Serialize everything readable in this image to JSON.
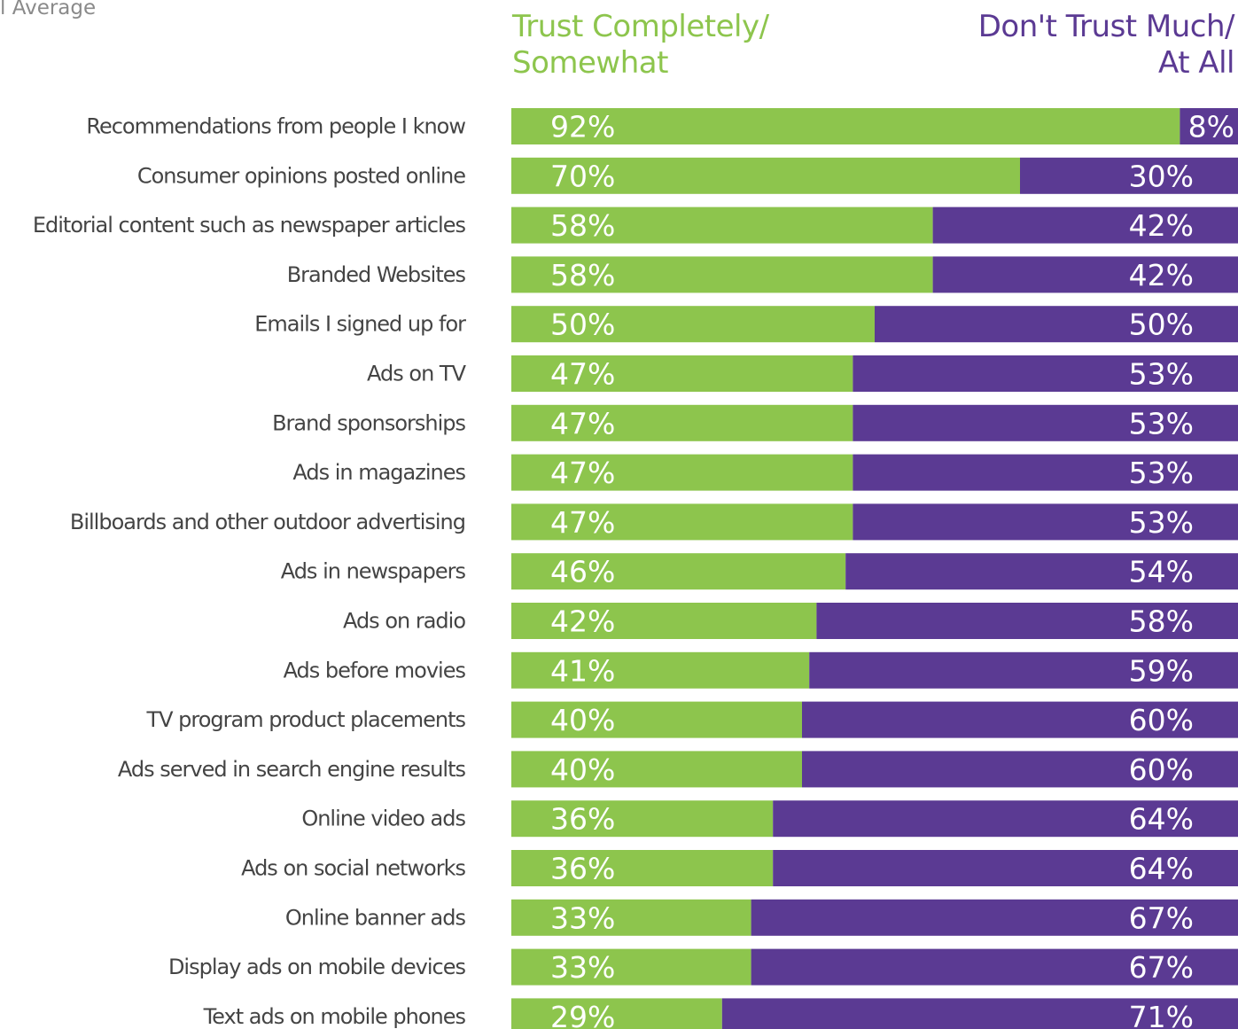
{
  "header": {
    "corner_label": "l Average"
  },
  "legend": {
    "trust_line1": "Trust Completely/",
    "trust_line2": "Somewhat",
    "distrust_line1": "Don't Trust Much/",
    "distrust_line2": "At All"
  },
  "colors": {
    "trust": "#8dc54d",
    "distrust": "#5b3a93",
    "label_text": "#444444",
    "value_text": "#ffffff"
  },
  "chart_data": {
    "type": "bar",
    "orientation": "horizontal",
    "stacked": true,
    "xlim": [
      0,
      100
    ],
    "unit": "%",
    "legend_position": "top",
    "grid": false,
    "categories": [
      "Recommendations from people I know",
      "Consumer opinions posted online",
      "Editorial content such as newspaper articles",
      "Branded Websites",
      "Emails I signed up for",
      "Ads on TV",
      "Brand sponsorships",
      "Ads in magazines",
      "Billboards and other outdoor advertising",
      "Ads in newspapers",
      "Ads on radio",
      "Ads before movies",
      "TV program product placements",
      "Ads served in search engine results",
      "Online video ads",
      "Ads on social networks",
      "Online banner ads",
      "Display ads on mobile devices",
      "Text ads on mobile phones"
    ],
    "series": [
      {
        "name": "Trust Completely/ Somewhat",
        "values": [
          92,
          70,
          58,
          58,
          50,
          47,
          47,
          47,
          47,
          46,
          42,
          41,
          40,
          40,
          36,
          36,
          33,
          33,
          29
        ]
      },
      {
        "name": "Don't Trust Much/ At All",
        "values": [
          8,
          30,
          42,
          42,
          50,
          53,
          53,
          53,
          53,
          54,
          58,
          59,
          60,
          60,
          64,
          64,
          67,
          67,
          71
        ]
      }
    ],
    "value_labels": {
      "trust": [
        "92%",
        "70%",
        "58%",
        "58%",
        "50%",
        "47%",
        "47%",
        "47%",
        "47%",
        "46%",
        "42%",
        "41%",
        "40%",
        "40%",
        "36%",
        "36%",
        "33%",
        "33%",
        "29%"
      ],
      "distrust": [
        "8%",
        "30%",
        "42%",
        "42%",
        "50%",
        "53%",
        "53%",
        "53%",
        "53%",
        "54%",
        "58%",
        "59%",
        "60%",
        "60%",
        "64%",
        "64%",
        "67%",
        "67%",
        "71%"
      ]
    }
  }
}
